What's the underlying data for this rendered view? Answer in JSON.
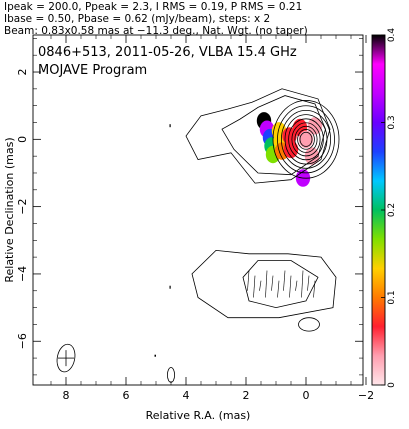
{
  "header": {
    "line1": "Ipeak = 200.0, Ppeak = 2.3, I RMS = 0.19, P RMS = 0.21",
    "line2": "Ibase = 0.50, Pbase = 0.62 (mJy/beam), steps: x 2",
    "line3": "Beam: 0.83x0.58 mas at −11.3 deg., Nat. Wgt. (no taper)"
  },
  "plot": {
    "title_line1": "0846+513, 2011-05-26, VLBA 15.4 GHz",
    "title_line2": "MOJAVE Program"
  },
  "chart_data": {
    "type": "heatmap",
    "xlabel": "Relative R.A. (mas)",
    "ylabel": "Relative Declination (mas)",
    "xlim": [
      9.1,
      -1.9
    ],
    "ylim": [
      -7.3,
      3.1
    ],
    "x_ticks": [
      8,
      6,
      4,
      2,
      0,
      -2
    ],
    "x_tick_labels": [
      "8",
      "6",
      "4",
      "2",
      "0",
      "−2"
    ],
    "y_ticks": [
      2,
      0,
      -2,
      -4,
      -6
    ],
    "y_tick_labels": [
      "2",
      "0",
      "−2",
      "−4",
      "−6"
    ],
    "colorbar": {
      "min": 0,
      "max": 0.4,
      "ticks": [
        0,
        0.1,
        0.2,
        0.3,
        0.4
      ],
      "tick_labels": [
        "0",
        "0.1",
        "0.2",
        "0.3",
        "0.4"
      ],
      "colors": [
        "#ffe6ea",
        "#ff9fb0",
        "#ff2030",
        "#ff7a00",
        "#ffd000",
        "#7fe000",
        "#00c060",
        "#00c8ff",
        "#1e40ff",
        "#6a00ff",
        "#c000ff",
        "#ff00ff",
        "#000000"
      ]
    },
    "stokes_I_contours_core": {
      "center": [
        0.0,
        0.0
      ],
      "radii_mas": [
        1.1,
        0.95,
        0.82,
        0.7,
        0.58,
        0.47,
        0.37,
        0.28,
        0.2
      ]
    },
    "stokes_I_outer_contour": [
      [
        1.7,
        -1.3
      ],
      [
        0.5,
        -1.2
      ],
      [
        -0.5,
        -0.6
      ],
      [
        -0.8,
        0.3
      ],
      [
        -0.4,
        1.2
      ],
      [
        0.8,
        1.5
      ],
      [
        1.8,
        1.1
      ],
      [
        2.6,
        0.9
      ],
      [
        3.5,
        0.7
      ],
      [
        4.0,
        0.1
      ],
      [
        3.6,
        -0.6
      ],
      [
        2.5,
        -0.4
      ]
    ],
    "stokes_I_second_contour": [
      [
        1.6,
        -1.0
      ],
      [
        0.5,
        -1.05
      ],
      [
        -0.4,
        -0.5
      ],
      [
        -0.65,
        0.3
      ],
      [
        -0.3,
        1.05
      ],
      [
        0.7,
        1.3
      ],
      [
        1.6,
        0.95
      ],
      [
        2.2,
        0.6
      ],
      [
        2.8,
        0.3
      ],
      [
        2.4,
        -0.3
      ]
    ],
    "fractional_polarization_pixels": [
      {
        "x": 1.4,
        "y": 0.55,
        "v": 0.4
      },
      {
        "x": 1.3,
        "y": 0.3,
        "v": 0.32
      },
      {
        "x": 1.2,
        "y": 0.05,
        "v": 0.27
      },
      {
        "x": 1.15,
        "y": -0.2,
        "v": 0.2
      },
      {
        "x": 1.1,
        "y": -0.45,
        "v": 0.18
      },
      {
        "x": 0.9,
        "y": 0.25,
        "v": 0.15
      },
      {
        "x": 0.85,
        "y": -0.05,
        "v": 0.12
      },
      {
        "x": 0.8,
        "y": -0.35,
        "v": 0.1
      },
      {
        "x": 0.55,
        "y": 0.1,
        "v": 0.07
      },
      {
        "x": 0.5,
        "y": -0.3,
        "v": 0.07
      },
      {
        "x": 0.2,
        "y": 0.35,
        "v": 0.05
      },
      {
        "x": 0.0,
        "y": 0.0,
        "v": 0.02
      },
      {
        "x": -0.3,
        "y": 0.4,
        "v": 0.03
      },
      {
        "x": -0.2,
        "y": -0.5,
        "v": 0.04
      },
      {
        "x": 0.1,
        "y": -1.15,
        "v": 0.32
      }
    ],
    "lower_panel_outer_contour": [
      [
        3.8,
        -4.0
      ],
      [
        3.6,
        -4.7
      ],
      [
        2.6,
        -5.3
      ],
      [
        0.9,
        -5.3
      ],
      [
        -0.9,
        -5.0
      ],
      [
        -1.0,
        -4.1
      ],
      [
        -0.5,
        -3.5
      ],
      [
        0.6,
        -3.4
      ],
      [
        1.9,
        -3.4
      ],
      [
        3.0,
        -3.3
      ]
    ],
    "lower_panel_inner_contour": [
      [
        2.1,
        -4.1
      ],
      [
        1.6,
        -3.6
      ],
      [
        0.5,
        -3.6
      ],
      [
        -0.4,
        -4.1
      ],
      [
        0.0,
        -4.8
      ],
      [
        1.0,
        -5.0
      ],
      [
        1.9,
        -4.8
      ]
    ],
    "beam": {
      "x": 8.0,
      "y": -6.5,
      "major": 0.83,
      "minor": 0.58,
      "pa_deg": -11.3
    }
  }
}
